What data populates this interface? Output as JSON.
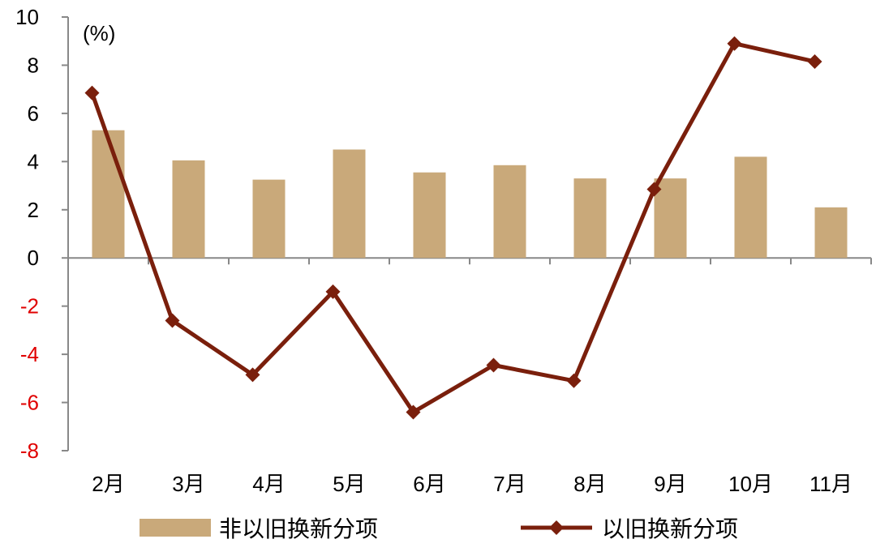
{
  "chart_data": {
    "type": "bar",
    "unit_label": "(%)",
    "categories": [
      "2月",
      "3月",
      "4月",
      "5月",
      "6月",
      "7月",
      "8月",
      "9月",
      "10月",
      "11月"
    ],
    "series": [
      {
        "name": "非以旧换新分项",
        "type": "bar",
        "color": "#c9a97a",
        "values": [
          5.3,
          4.05,
          3.25,
          4.5,
          3.55,
          3.85,
          3.3,
          3.3,
          4.2,
          2.1
        ]
      },
      {
        "name": "以旧换新分项",
        "type": "line",
        "marker": "diamond",
        "color": "#7a1f0c",
        "values": [
          6.85,
          -2.6,
          -4.85,
          -1.4,
          -6.4,
          -4.45,
          -5.1,
          2.85,
          8.9,
          8.15
        ]
      }
    ],
    "ylim": [
      -8,
      10
    ],
    "yticks": [
      "10",
      "8",
      "6",
      "4",
      "2",
      "0",
      "-2",
      "-4",
      "-6",
      "-8"
    ],
    "ytick_values": [
      10,
      8,
      6,
      4,
      2,
      0,
      -2,
      -4,
      -6,
      -8
    ],
    "negative_tick_color": "#e00000",
    "positive_tick_color": "#000000",
    "grid": false,
    "legend_position": "bottom"
  }
}
